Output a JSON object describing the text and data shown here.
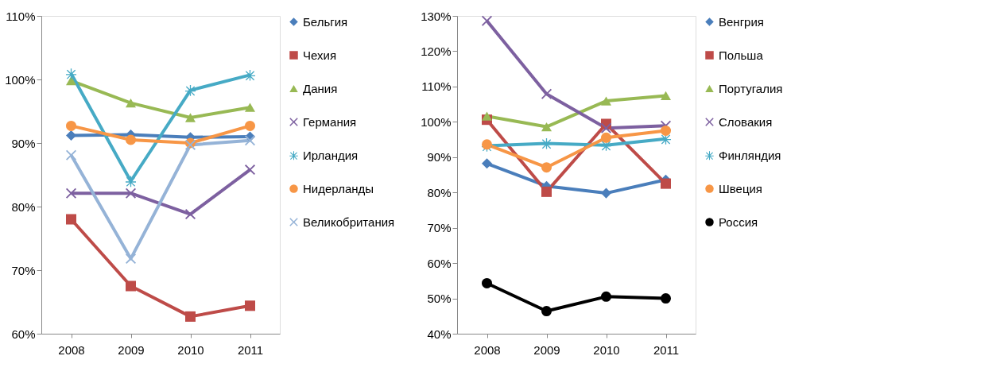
{
  "chart_data": [
    {
      "type": "line",
      "categories": [
        "2008",
        "2009",
        "2010",
        "2011"
      ],
      "ylim": [
        60,
        110
      ],
      "yticks": [
        {
          "value": 60,
          "label": "60%"
        },
        {
          "value": 70,
          "label": "70%"
        },
        {
          "value": 80,
          "label": "80%"
        },
        {
          "value": 90,
          "label": "90%"
        },
        {
          "value": 100,
          "label": "100%"
        },
        {
          "value": 110,
          "label": "110%"
        }
      ],
      "grid": false,
      "legend": "right",
      "line_style": "solid",
      "series": [
        {
          "name": "Бельгия",
          "color": "#4a7ebb",
          "marker": "diamond",
          "values": [
            91.2,
            91.3,
            90.9,
            91.0
          ]
        },
        {
          "name": "Чехия",
          "color": "#be4b48",
          "marker": "square",
          "values": [
            78.0,
            67.5,
            62.7,
            64.4
          ]
        },
        {
          "name": "Дания",
          "color": "#98b954",
          "marker": "triangle",
          "values": [
            99.8,
            96.3,
            94.0,
            95.6
          ]
        },
        {
          "name": "Германия",
          "color": "#7d60a0",
          "marker": "cross",
          "values": [
            82.1,
            82.1,
            78.8,
            85.8
          ]
        },
        {
          "name": "Ирландия",
          "color": "#46aac5",
          "marker": "star",
          "values": [
            100.9,
            84.0,
            98.3,
            100.7
          ]
        },
        {
          "name": "Нидерланды",
          "color": "#f79646",
          "marker": "circle",
          "values": [
            92.7,
            90.5,
            90.0,
            92.7
          ]
        },
        {
          "name": "Великобритания",
          "color": "#95b3d7",
          "marker": "cross",
          "values": [
            88.1,
            71.8,
            89.7,
            90.4
          ]
        }
      ]
    },
    {
      "type": "line",
      "categories": [
        "2008",
        "2009",
        "2010",
        "2011"
      ],
      "ylim": [
        40,
        130
      ],
      "yticks": [
        {
          "value": 40,
          "label": "40%"
        },
        {
          "value": 50,
          "label": "50%"
        },
        {
          "value": 60,
          "label": "60%"
        },
        {
          "value": 70,
          "label": "70%"
        },
        {
          "value": 80,
          "label": "80%"
        },
        {
          "value": 90,
          "label": "90%"
        },
        {
          "value": 100,
          "label": "100%"
        },
        {
          "value": 110,
          "label": "110%"
        },
        {
          "value": 120,
          "label": "120%"
        },
        {
          "value": 130,
          "label": "130%"
        }
      ],
      "grid": false,
      "legend": "right",
      "line_style": "solid",
      "series": [
        {
          "name": "Венгрия",
          "color": "#4a7ebb",
          "marker": "diamond",
          "values": [
            88.2,
            81.8,
            79.8,
            83.6
          ]
        },
        {
          "name": "Польша",
          "color": "#be4b48",
          "marker": "square",
          "values": [
            100.6,
            80.2,
            99.4,
            82.5
          ]
        },
        {
          "name": "Португалия",
          "color": "#98b954",
          "marker": "triangle",
          "values": [
            101.6,
            98.6,
            105.9,
            107.4
          ]
        },
        {
          "name": "Словакия",
          "color": "#7d60a0",
          "marker": "cross",
          "values": [
            128.6,
            107.9,
            98.2,
            98.9
          ]
        },
        {
          "name": "Финляндия",
          "color": "#46aac5",
          "marker": "star",
          "values": [
            93.2,
            93.9,
            93.4,
            95.2
          ]
        },
        {
          "name": "Швеция",
          "color": "#f79646",
          "marker": "circle",
          "values": [
            93.6,
            87.1,
            95.5,
            97.5
          ]
        },
        {
          "name": "Россия",
          "color": "#000000",
          "marker": "circle",
          "values": [
            54.3,
            46.4,
            50.5,
            50.0
          ]
        }
      ]
    }
  ]
}
